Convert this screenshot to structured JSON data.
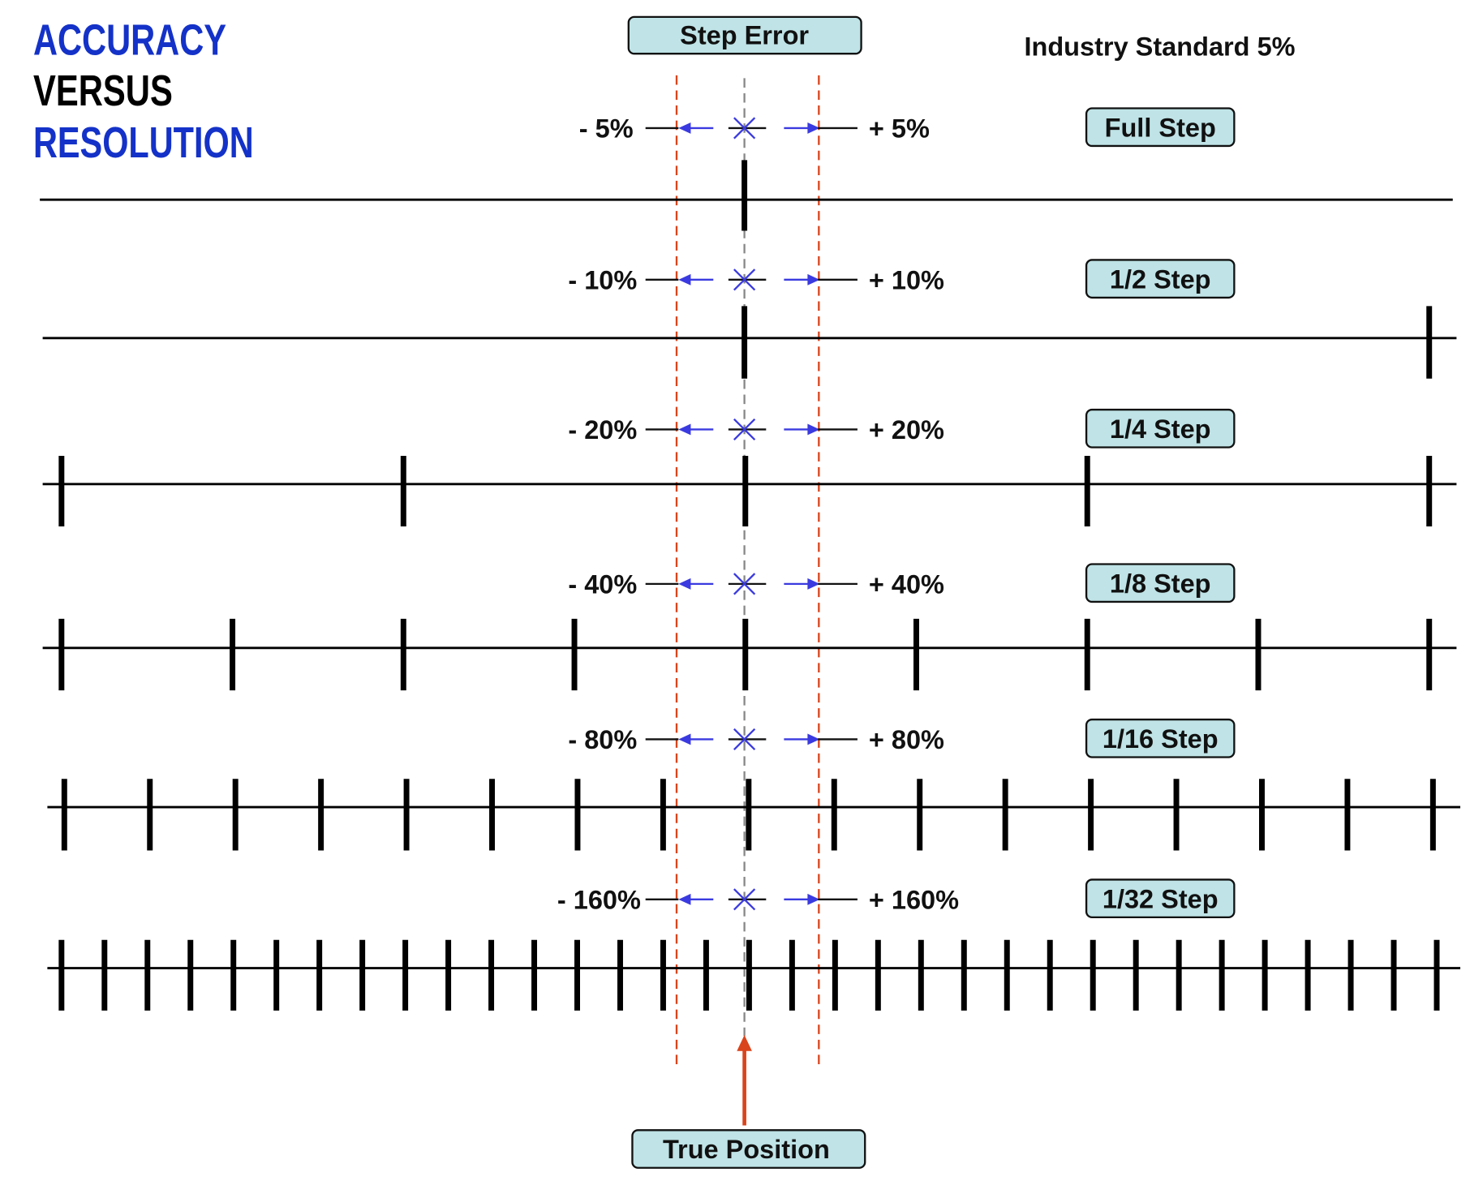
{
  "title": {
    "line1": "ACCURACY",
    "line2": "VERSUS",
    "line3": "RESOLUTION"
  },
  "step_error_label": "Step Error",
  "industry_standard": "Industry Standard 5%",
  "true_position_label": "True Position",
  "rows": [
    {
      "step": "Full Step",
      "minus": "- 5%",
      "plus": "+ 5%"
    },
    {
      "step": "1/2 Step",
      "minus": "- 10%",
      "plus": "+ 10%"
    },
    {
      "step": "1/4 Step",
      "minus": "- 20%",
      "plus": "+ 20%"
    },
    {
      "step": "1/8 Step",
      "minus": "- 40%",
      "plus": "+ 40%"
    },
    {
      "step": "1/16 Step",
      "minus": "- 80%",
      "plus": "+ 80%"
    },
    {
      "step": "1/32 Step",
      "minus": "- 160%",
      "plus": "+ 160%"
    }
  ],
  "colors": {
    "title_blue": "#1432c8",
    "band_red": "#d9441c",
    "arrow_blue": "#3a3ae0",
    "box_fill": "#bfe3e6",
    "center_gray": "#888888"
  }
}
